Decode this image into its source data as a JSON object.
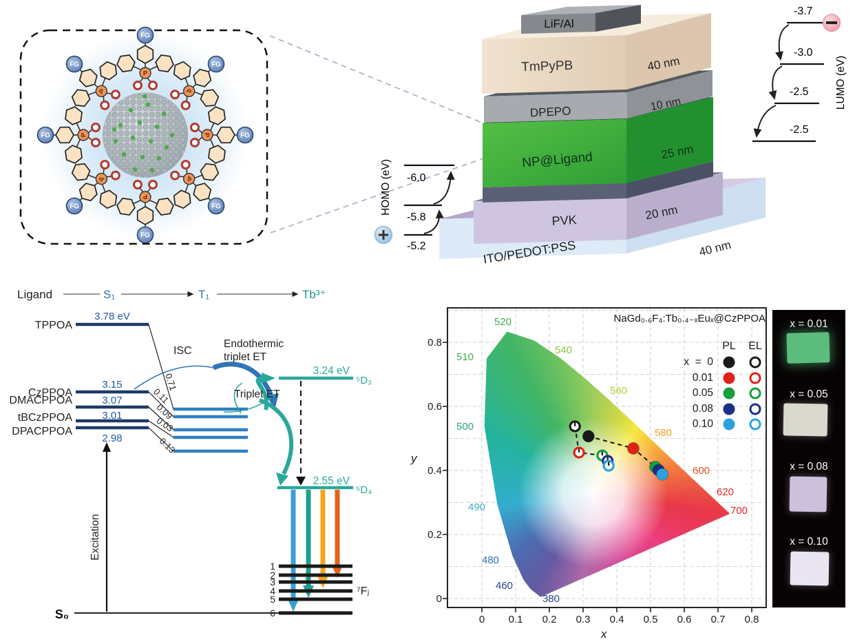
{
  "nanoparticle": {
    "fg_label": "FG",
    "p_label": "P"
  },
  "device": {
    "layers": [
      {
        "name": "LiF/Al",
        "thickness": ""
      },
      {
        "name": "TmPyPB",
        "thickness": "40 nm"
      },
      {
        "name": "DPEPO",
        "thickness": "10 nm"
      },
      {
        "name": "NP@Ligand",
        "thickness": "25 nm"
      },
      {
        "name": "PVK",
        "thickness": "20 nm"
      },
      {
        "name": "ITO/PEDOT:PSS",
        "thickness": "40 nm"
      }
    ],
    "homo": {
      "label": "HOMO (eV)",
      "values": [
        "-6.0",
        "-5.8",
        "-5.2"
      ]
    },
    "lumo": {
      "label": "LUMO (eV)",
      "values": [
        "-3.7",
        "-3.0",
        "-2.5",
        "-2.5"
      ]
    },
    "electron_symbol": "−",
    "hole_symbol": "+"
  },
  "energy_diagram": {
    "header": {
      "ligand": "Ligand",
      "s1": "S₁",
      "t1": "T₁",
      "acceptor": "Tb³⁺"
    },
    "ligands": [
      {
        "name": "TPPOA",
        "energy": "3.78 eV"
      },
      {
        "name": "CzPPOA",
        "energy": "3.15"
      },
      {
        "name": "DMACPPOA",
        "energy": "3.07"
      },
      {
        "name": "tBCzPPOA",
        "energy": "3.01"
      },
      {
        "name": "DPACPPOA",
        "energy": "2.98"
      }
    ],
    "isc_label": "ISC",
    "isc_values": [
      "0.71",
      "0.11",
      "0.09",
      "0.03",
      "0.13"
    ],
    "endothermic_line1": "Endothermic",
    "endothermic_line2": "triplet ET",
    "triplet_et": "Triplet ET",
    "d3_energy": "3.24 eV",
    "d3_term": "⁵D₃",
    "d4_energy": "2.55 eV",
    "d4_term": "⁵D₄",
    "fj_term": "⁷Fⱼ",
    "fj_levels": [
      "1",
      "2",
      "3",
      "4",
      "5",
      "6"
    ],
    "ground": "S₀",
    "excitation": "Excitation"
  },
  "chart_data": {
    "type": "scatter",
    "title": "NaGd₀.₆F₄:Tb₀.₄₋ₓEuₓ@CzPPOA",
    "xlabel": "x",
    "ylabel": "y",
    "xlim": [
      -0.102,
      0.843
    ],
    "ylim": [
      -0.028,
      0.908
    ],
    "grid": true,
    "xtick_labels": [
      "0",
      "0.1",
      "0.2",
      "0.3",
      "0.4",
      "0.5",
      "0.6",
      "0.7",
      "0.8"
    ],
    "ytick_labels": [
      "0",
      "0.2",
      "0.4",
      "0.6",
      "0.8"
    ],
    "wavelengths": [
      {
        "text": "520",
        "color": "#3fae49"
      },
      {
        "text": "540",
        "color": "#8cc63f"
      },
      {
        "text": "510",
        "color": "#3fae49"
      },
      {
        "text": "560",
        "color": "#b7cc2f"
      },
      {
        "text": "500",
        "color": "#29a583"
      },
      {
        "text": "580",
        "color": "#f0a01e"
      },
      {
        "text": "490",
        "color": "#36aec0"
      },
      {
        "text": "600",
        "color": "#e45323"
      },
      {
        "text": "620",
        "color": "#de2428"
      },
      {
        "text": "480",
        "color": "#2e6db4"
      },
      {
        "text": "460",
        "color": "#2c418e"
      },
      {
        "text": "700",
        "color": "#de2428"
      },
      {
        "text": "380",
        "color": "#2c418e"
      }
    ],
    "legend": {
      "columns": [
        "PL",
        "EL"
      ],
      "rows": [
        {
          "label": "x  =  0",
          "color": "#1a1a1a"
        },
        {
          "label": "0.01",
          "color": "#e02318"
        },
        {
          "label": "0.05",
          "color": "#14a03c"
        },
        {
          "label": "0.08",
          "color": "#1b2f87"
        },
        {
          "label": "0.10",
          "color": "#2ba2e0"
        }
      ]
    },
    "series": [
      {
        "name": "PL",
        "marker": "filled",
        "points": [
          {
            "x": 0.316,
            "y": 0.507,
            "color": "#1a1a1a"
          },
          {
            "x": 0.449,
            "y": 0.469,
            "color": "#e02318"
          },
          {
            "x": 0.514,
            "y": 0.411,
            "color": "#14a03c"
          },
          {
            "x": 0.524,
            "y": 0.401,
            "color": "#1b2f87"
          },
          {
            "x": 0.535,
            "y": 0.388,
            "color": "#2ba2e0"
          }
        ]
      },
      {
        "name": "EL",
        "marker": "open",
        "points": [
          {
            "x": 0.276,
            "y": 0.538,
            "color": "#1a1a1a"
          },
          {
            "x": 0.288,
            "y": 0.456,
            "color": "#e02318"
          },
          {
            "x": 0.357,
            "y": 0.447,
            "color": "#14a03c"
          },
          {
            "x": 0.373,
            "y": 0.43,
            "color": "#1b2f87"
          },
          {
            "x": 0.376,
            "y": 0.415,
            "color": "#2ba2e0"
          }
        ]
      }
    ]
  },
  "photos": {
    "items": [
      {
        "label": "x = 0.01",
        "color": "#5cbc7e"
      },
      {
        "label": "x = 0.05",
        "color": "#d9d9ce"
      },
      {
        "label": "x = 0.08",
        "color": "#cdc0dc"
      },
      {
        "label": "x = 0.10",
        "color": "#e9e6f2"
      }
    ]
  }
}
